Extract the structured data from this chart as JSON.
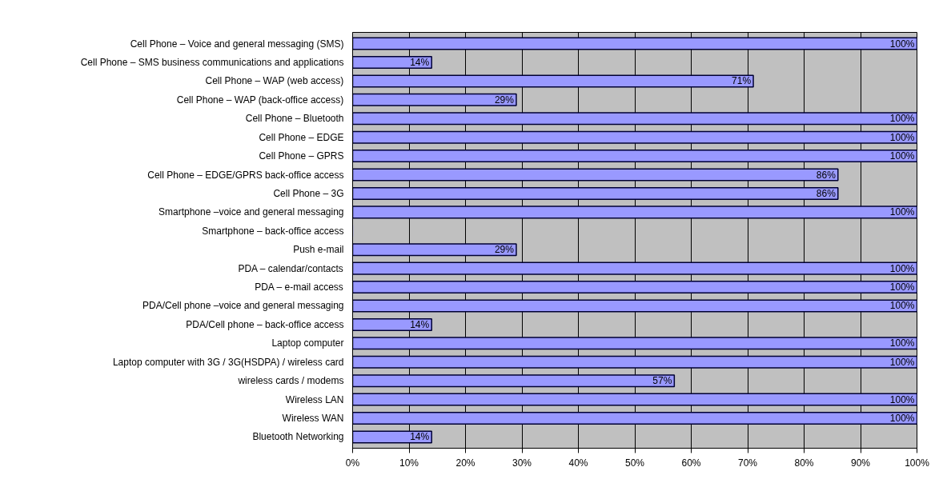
{
  "chart_data": {
    "type": "bar",
    "orientation": "horizontal",
    "categories": [
      "Cell Phone – Voice and general messaging (SMS)",
      "Cell Phone – SMS business communications and applications",
      "Cell Phone – WAP (web access)",
      "Cell Phone – WAP (back-office access)",
      "Cell Phone – Bluetooth",
      "Cell Phone – EDGE",
      "Cell Phone – GPRS",
      "Cell Phone – EDGE/GPRS back-office access",
      "Cell Phone – 3G",
      "Smartphone –voice and general messaging",
      "Smartphone – back-office access",
      "Push e-mail",
      "PDA – calendar/contacts",
      "PDA – e-mail access",
      "PDA/Cell phone –voice and general messaging",
      "PDA/Cell phone – back-office access",
      "Laptop computer",
      "Laptop computer with 3G / 3G(HSDPA) / wireless card",
      "wireless cards / modems",
      "Wireless LAN",
      "Wireless WAN",
      "Bluetooth Networking"
    ],
    "values": [
      100,
      14,
      71,
      29,
      100,
      100,
      100,
      86,
      86,
      100,
      0,
      29,
      100,
      100,
      100,
      14,
      100,
      100,
      57,
      100,
      100,
      14
    ],
    "value_labels": [
      "100%",
      "14%",
      "71%",
      "29%",
      "100%",
      "100%",
      "100%",
      "86%",
      "86%",
      "100%",
      null,
      "29%",
      "100%",
      "100%",
      "100%",
      "14%",
      "100%",
      "100%",
      "57%",
      "100%",
      "100%",
      "14%"
    ],
    "color": "#9999ff",
    "xlim": [
      0,
      100
    ],
    "xticks": [
      {
        "value": 0,
        "label": "0%"
      },
      {
        "value": 10,
        "label": "10%"
      },
      {
        "value": 20,
        "label": "20%"
      },
      {
        "value": 30,
        "label": "30%"
      },
      {
        "value": 40,
        "label": "40%"
      },
      {
        "value": 50,
        "label": "50%"
      },
      {
        "value": 60,
        "label": "60%"
      },
      {
        "value": 70,
        "label": "70%"
      },
      {
        "value": 80,
        "label": "80%"
      },
      {
        "value": 90,
        "label": "90%"
      },
      {
        "value": 100,
        "label": "100%"
      }
    ],
    "grid": "x"
  }
}
